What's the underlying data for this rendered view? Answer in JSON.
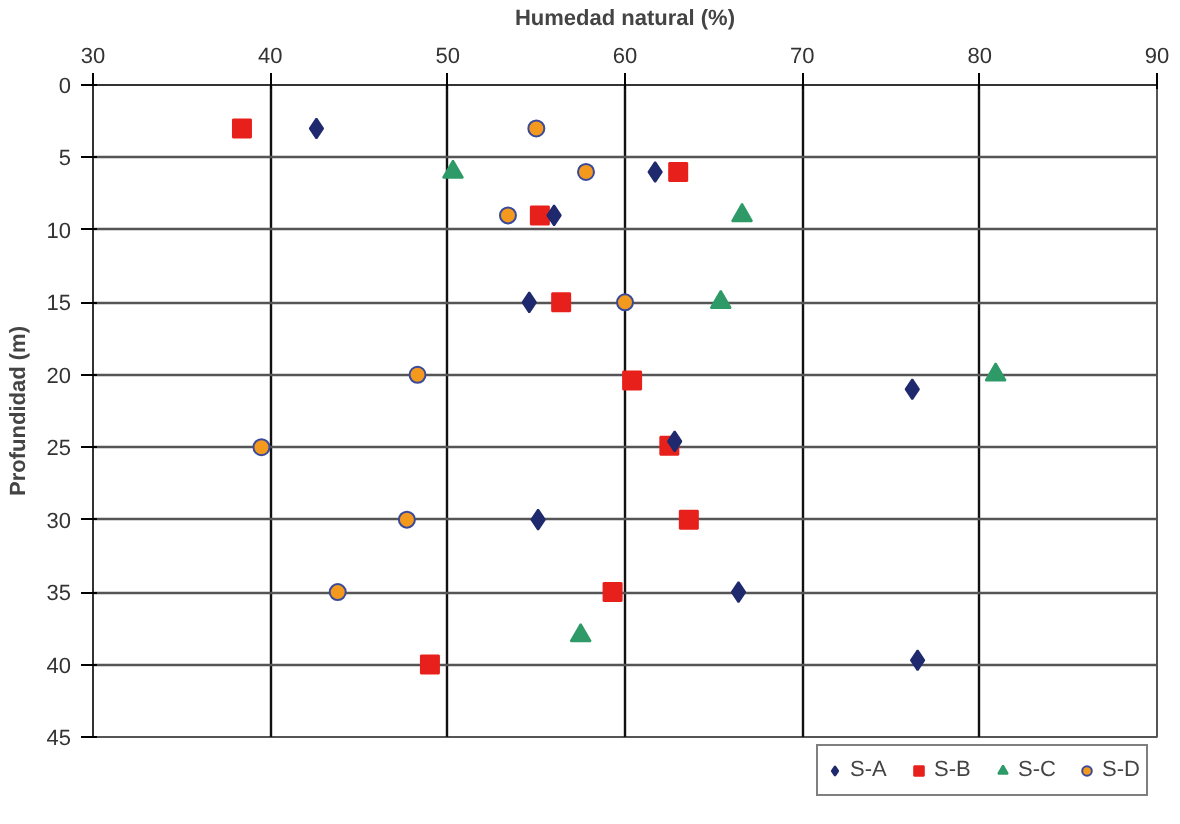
{
  "chart_data": {
    "type": "scatter",
    "xlabel": "Humedad natural (%)",
    "ylabel": "Profundidad (m)",
    "xlim": [
      30,
      90
    ],
    "xticks": [
      30,
      40,
      50,
      60,
      70,
      80,
      90
    ],
    "ylim": [
      45,
      0
    ],
    "yticks": [
      0,
      5,
      10,
      15,
      20,
      25,
      30,
      35,
      40,
      45
    ],
    "grid": true,
    "legend": "bottom",
    "series": [
      {
        "name": "S-A",
        "color": "#1f2a6e",
        "marker": "diamond",
        "x": [
          42.6,
          61.7,
          56.0,
          54.6,
          76.2,
          62.8,
          55.1,
          66.4,
          76.5
        ],
        "values": [
          3,
          6,
          9,
          15,
          21,
          24.6,
          30,
          35,
          39.7
        ]
      },
      {
        "name": "S-B",
        "color": "#e8201c",
        "marker": "square",
        "x": [
          38.4,
          63.0,
          55.2,
          56.4,
          60.4,
          62.5,
          63.6,
          59.3,
          49.0
        ],
        "values": [
          3,
          6,
          9,
          15,
          20.4,
          24.9,
          30,
          35,
          40
        ]
      },
      {
        "name": "S-C",
        "color": "#2e9a68",
        "marker": "triangle",
        "x": [
          50.3,
          66.6,
          65.4,
          80.9,
          57.5
        ],
        "values": [
          6,
          9,
          15,
          20,
          38
        ]
      },
      {
        "name": "S-D",
        "color": "#f39a1e",
        "marker": "circle",
        "x": [
          55.0,
          57.8,
          53.4,
          60.0,
          48.3,
          39.5,
          47.7,
          43.8
        ],
        "values": [
          3,
          6,
          9,
          15,
          20,
          25,
          30,
          35
        ]
      }
    ]
  }
}
